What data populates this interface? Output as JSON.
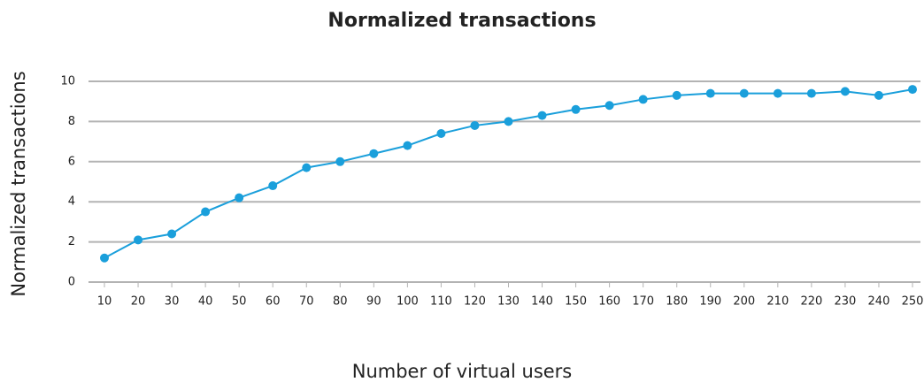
{
  "chart_data": {
    "type": "line",
    "title": "Normalized transactions",
    "xlabel": "Number of virtual users",
    "ylabel": "Normalized transactions",
    "categories": [
      "10",
      "20",
      "30",
      "40",
      "50",
      "60",
      "70",
      "80",
      "90",
      "100",
      "110",
      "120",
      "130",
      "140",
      "150",
      "160",
      "170",
      "180",
      "190",
      "200",
      "210",
      "220",
      "230",
      "240",
      "250"
    ],
    "series": [
      {
        "name": "Normalized transactions",
        "color": "#1a9fdb",
        "values": [
          1.2,
          2.1,
          2.4,
          3.5,
          4.2,
          4.8,
          5.7,
          6.0,
          6.4,
          6.8,
          7.4,
          7.8,
          8.0,
          8.3,
          8.6,
          8.8,
          9.1,
          9.3,
          9.4,
          9.4,
          9.4,
          9.4,
          9.5,
          9.3,
          9.6
        ]
      }
    ],
    "ylim": [
      0,
      10
    ],
    "yticks": [
      0,
      2,
      4,
      6,
      8,
      10
    ],
    "grid": true
  }
}
